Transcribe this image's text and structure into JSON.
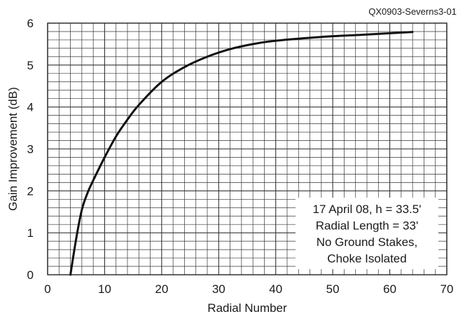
{
  "figure_id": "QX0903-Severns3-01",
  "chart_data": {
    "type": "line",
    "title": "",
    "xlabel": "Radial Number",
    "ylabel": "Gain Improvement (dB)",
    "xlim": [
      0,
      70
    ],
    "ylim": [
      0,
      6
    ],
    "xticks": [
      0,
      10,
      20,
      30,
      40,
      50,
      60,
      70
    ],
    "yticks": [
      0,
      1,
      2,
      3,
      4,
      5,
      6
    ],
    "grid": true,
    "series": [
      {
        "x": [
          4,
          5,
          6,
          7,
          8,
          10,
          12,
          14,
          16,
          20,
          24,
          28,
          32,
          36,
          40,
          48,
          56,
          64
        ],
        "y": [
          0,
          0.85,
          1.55,
          1.95,
          2.25,
          2.8,
          3.3,
          3.7,
          4.05,
          4.6,
          4.95,
          5.2,
          5.38,
          5.5,
          5.58,
          5.67,
          5.73,
          5.79
        ]
      }
    ],
    "annotation": {
      "lines": [
        "17 April 08, h = 33.5'",
        "Radial Length = 33'",
        "No Ground Stakes,",
        "Choke Isolated"
      ],
      "placement": "bottom-right"
    },
    "line_color": "#111111",
    "grid_color": "#333333"
  }
}
